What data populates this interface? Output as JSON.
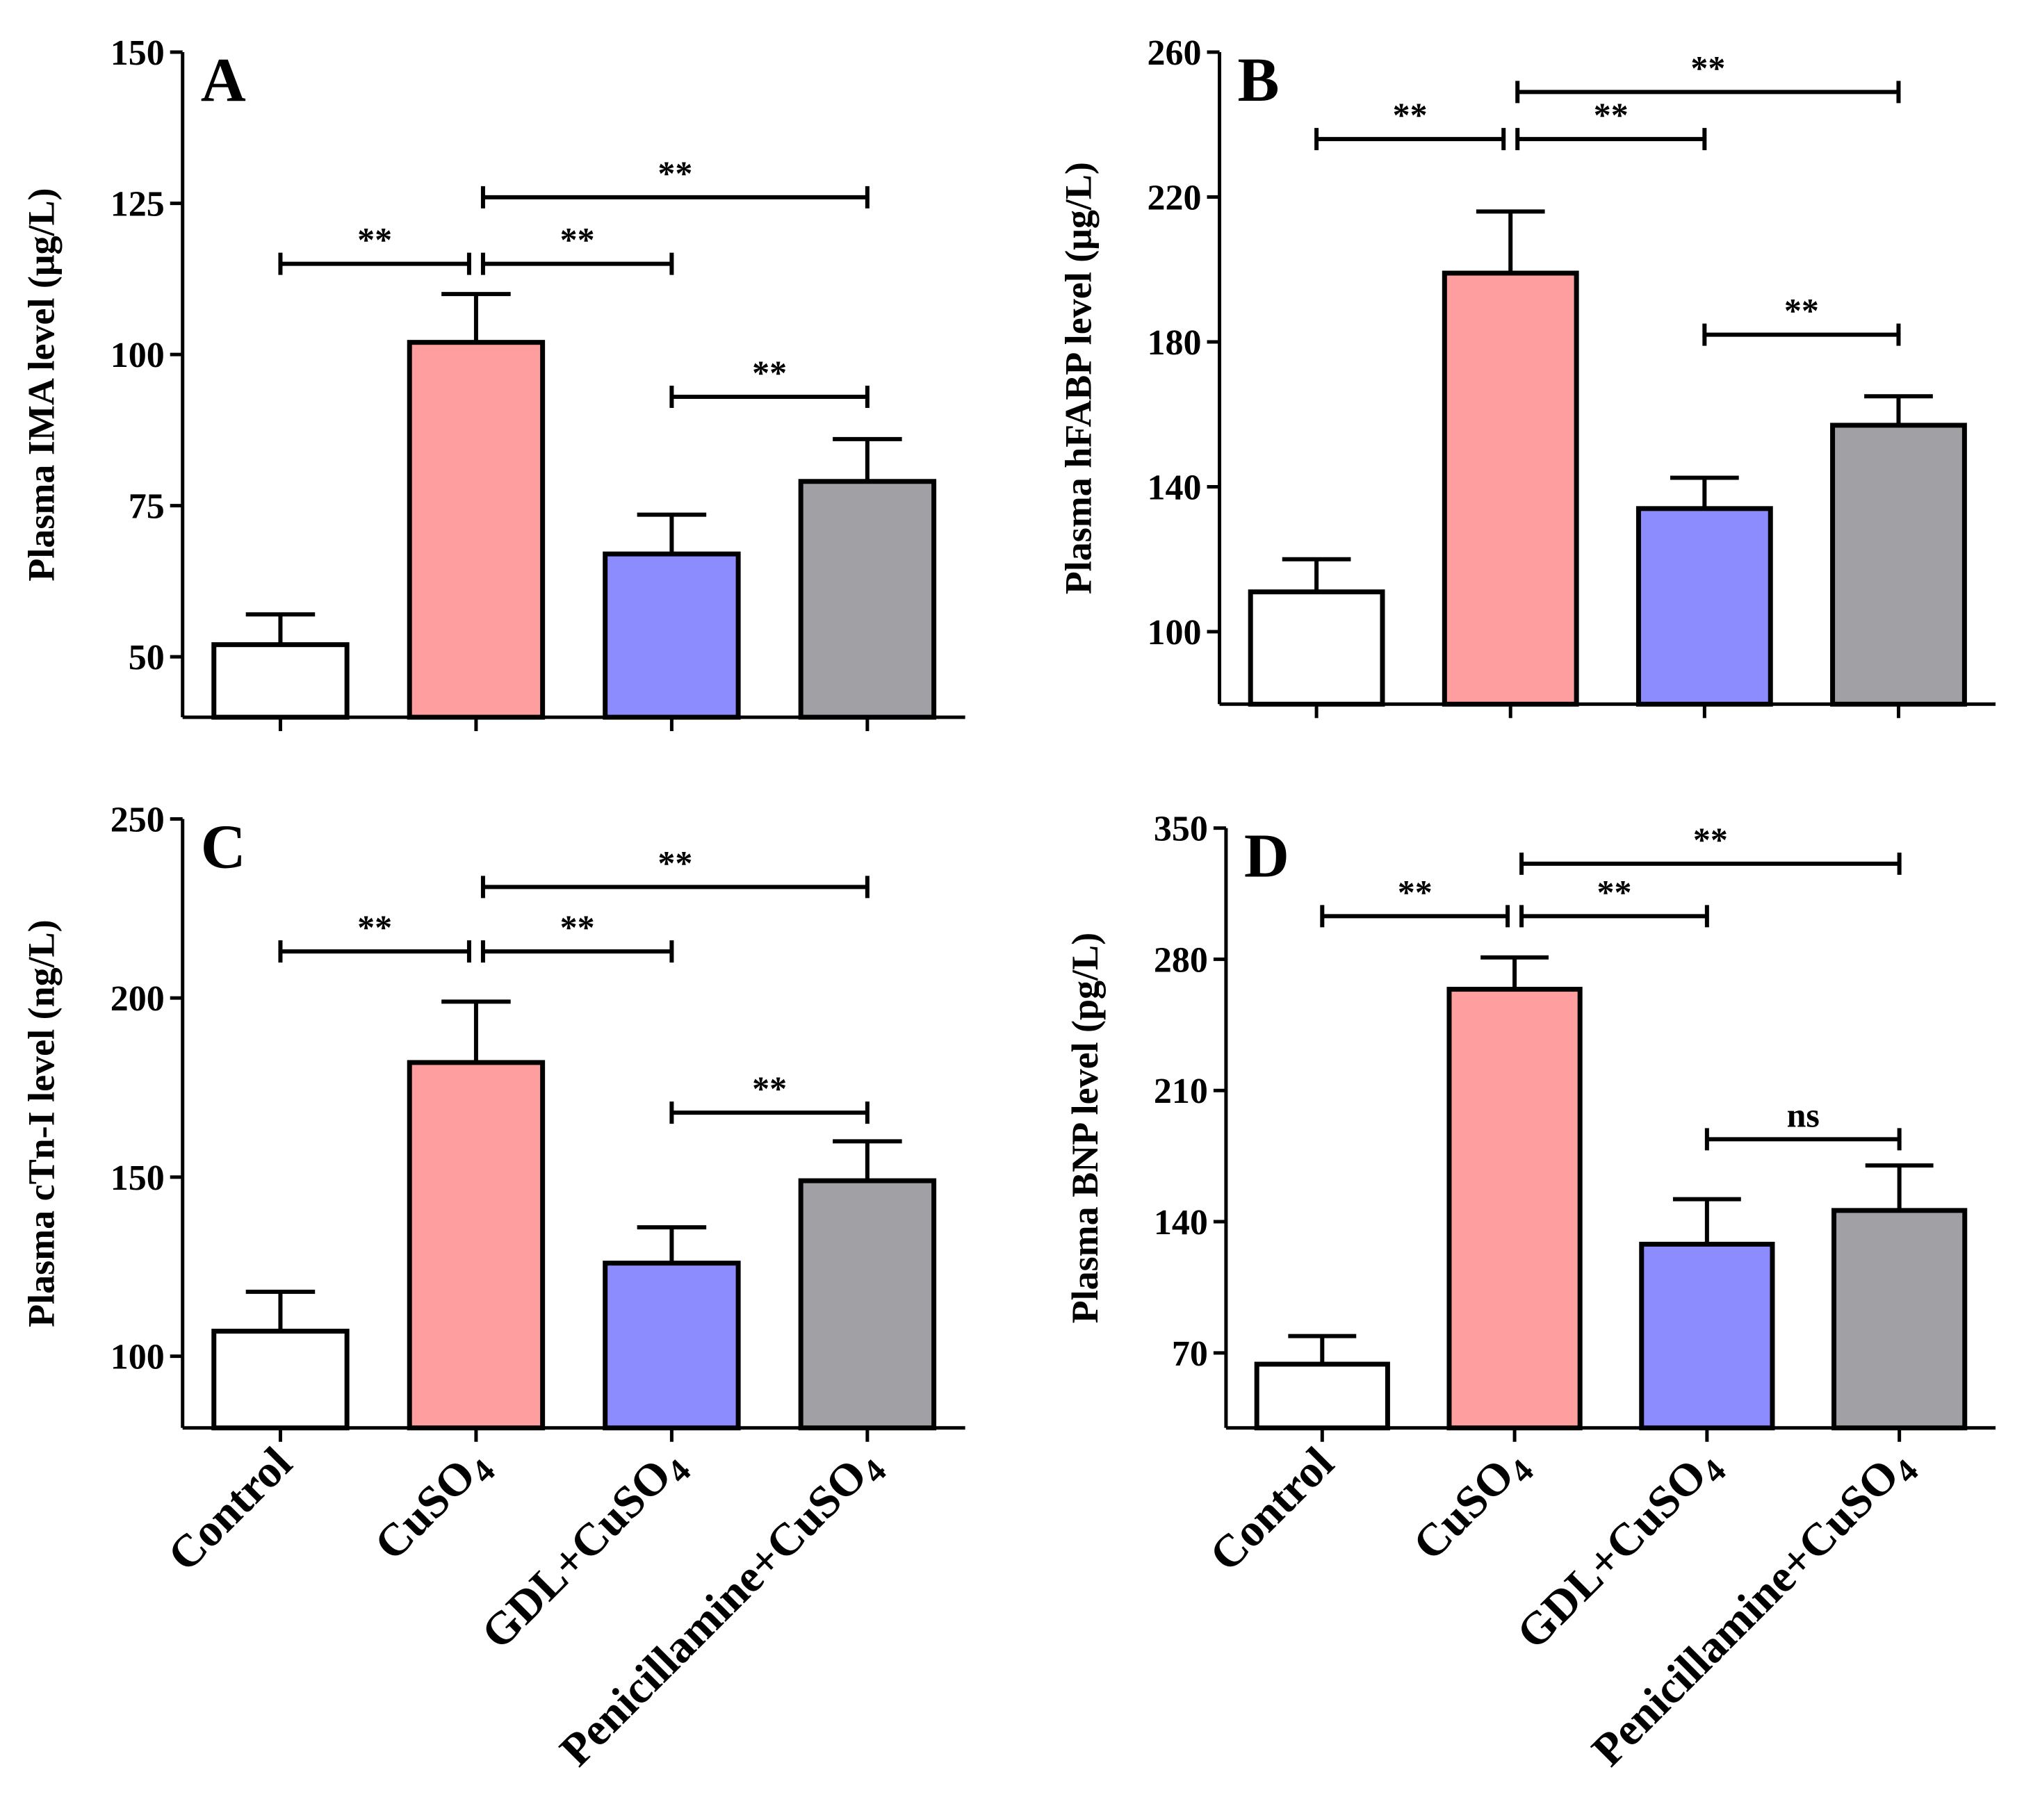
{
  "colors": {
    "control": "#ffffff",
    "cuso4": "#ff9e9e",
    "gdl": "#8c8cff",
    "penicillamine": "#a1a0a5",
    "stroke": "#000000"
  },
  "categories": [
    "Control",
    "CuSO4",
    "GDL+CuSO4",
    "Penicillamine+CuSO4"
  ],
  "category_labels": [
    {
      "base": "Control",
      "sub": ""
    },
    {
      "base": "CuSO",
      "sub": "4"
    },
    {
      "base": "GDL+CuSO",
      "sub": "4"
    },
    {
      "base": "Penicillamine+CuSO",
      "sub": "4"
    }
  ],
  "chart_data": [
    {
      "type": "bar",
      "panel": "A",
      "ylabel": "Plasma IMA level (μg/L)",
      "ylim": [
        40,
        150
      ],
      "yticks": [
        50,
        75,
        100,
        125,
        150
      ],
      "categories": [
        "Control",
        "CuSO4",
        "GDL+CuSO4",
        "Penicillamine+CuSO4"
      ],
      "values": [
        52,
        102,
        67,
        79
      ],
      "errors": [
        5,
        8,
        6.5,
        7
      ],
      "significance": [
        {
          "from": 0,
          "to": 1,
          "label": "**",
          "level": 115
        },
        {
          "from": 1,
          "to": 2,
          "label": "**",
          "level": 115
        },
        {
          "from": 1,
          "to": 3,
          "label": "**",
          "level": 126
        },
        {
          "from": 2,
          "to": 3,
          "label": "**",
          "level": 93
        }
      ]
    },
    {
      "type": "bar",
      "panel": "B",
      "ylabel": "Plasma hFABP level (μg/L)",
      "ylim": [
        80,
        260
      ],
      "yticks": [
        100,
        140,
        180,
        220,
        260
      ],
      "categories": [
        "Control",
        "CuSO4",
        "GDL+CuSO4",
        "Penicillamine+CuSO4"
      ],
      "values": [
        111,
        199,
        134,
        157
      ],
      "errors": [
        9,
        17,
        8.5,
        8
      ],
      "significance": [
        {
          "from": 0,
          "to": 1,
          "label": "**",
          "level": 236
        },
        {
          "from": 1,
          "to": 2,
          "label": "**",
          "level": 236
        },
        {
          "from": 1,
          "to": 3,
          "label": "**",
          "level": 249
        },
        {
          "from": 2,
          "to": 3,
          "label": "**",
          "level": 182
        }
      ]
    },
    {
      "type": "bar",
      "panel": "C",
      "ylabel": "Plasma cTn-I level (ng/L)",
      "ylim": [
        80,
        250
      ],
      "yticks": [
        100,
        150,
        200,
        250
      ],
      "categories": [
        "Control",
        "CuSO4",
        "GDL+CuSO4",
        "Penicillamine+CuSO4"
      ],
      "values": [
        107,
        182,
        126,
        149
      ],
      "errors": [
        11,
        17,
        10,
        11
      ],
      "significance": [
        {
          "from": 0,
          "to": 1,
          "label": "**",
          "level": 213
        },
        {
          "from": 1,
          "to": 2,
          "label": "**",
          "level": 213
        },
        {
          "from": 1,
          "to": 3,
          "label": "**",
          "level": 231
        },
        {
          "from": 2,
          "to": 3,
          "label": "**",
          "level": 168
        }
      ]
    },
    {
      "type": "bar",
      "panel": "D",
      "ylabel": "Plasma BNP level (pg/L)",
      "ylim": [
        30,
        350
      ],
      "yticks": [
        70,
        140,
        210,
        280,
        350
      ],
      "categories": [
        "Control",
        "CuSO4",
        "GDL+CuSO4",
        "Penicillamine+CuSO4"
      ],
      "values": [
        64,
        264,
        128,
        146
      ],
      "errors": [
        15,
        17,
        24,
        24
      ],
      "significance": [
        {
          "from": 0,
          "to": 1,
          "label": "**",
          "level": 303
        },
        {
          "from": 1,
          "to": 2,
          "label": "**",
          "level": 303
        },
        {
          "from": 1,
          "to": 3,
          "label": "**",
          "level": 331
        },
        {
          "from": 2,
          "to": 3,
          "label": "ns",
          "level": 184
        }
      ]
    }
  ]
}
